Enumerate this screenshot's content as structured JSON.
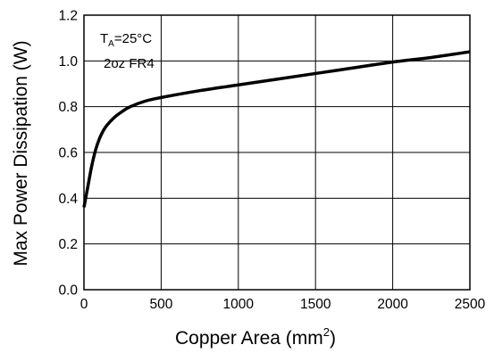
{
  "chart_data": {
    "type": "line",
    "title": "",
    "xlabel": "Copper Area (mm",
    "xlabel_sup": "2",
    "xlabel_close": ")",
    "ylabel": "Max Power Dissipation (W)",
    "xlim": [
      0,
      2500
    ],
    "ylim": [
      0,
      1.2
    ],
    "grid": true,
    "x_ticks": [
      0,
      500,
      1000,
      1500,
      2000,
      2500
    ],
    "x_tick_labels": [
      "0",
      "500",
      "1000",
      "1500",
      "2000",
      "2500"
    ],
    "y_ticks": [
      0,
      0.2,
      0.4,
      0.6,
      0.8,
      1.0,
      1.2
    ],
    "y_tick_labels": [
      "0.0",
      "0.2",
      "0.4",
      "0.6",
      "0.8",
      "1.0",
      "1.2"
    ],
    "annotation": {
      "line1_main": "T",
      "line1_sub": "A",
      "line1_rest": "=25°C",
      "line2": "2oz FR4"
    },
    "series": [
      {
        "x": [
          0,
          25,
          50,
          75,
          100,
          125,
          150,
          200,
          250,
          300,
          400,
          500,
          750,
          1000,
          1250,
          1500,
          1750,
          2000,
          2250,
          2500
        ],
        "y": [
          0.36,
          0.45,
          0.54,
          0.61,
          0.66,
          0.695,
          0.72,
          0.755,
          0.78,
          0.8,
          0.825,
          0.84,
          0.87,
          0.895,
          0.92,
          0.945,
          0.97,
          0.995,
          1.015,
          1.04
        ],
        "color": "#000000"
      }
    ]
  }
}
